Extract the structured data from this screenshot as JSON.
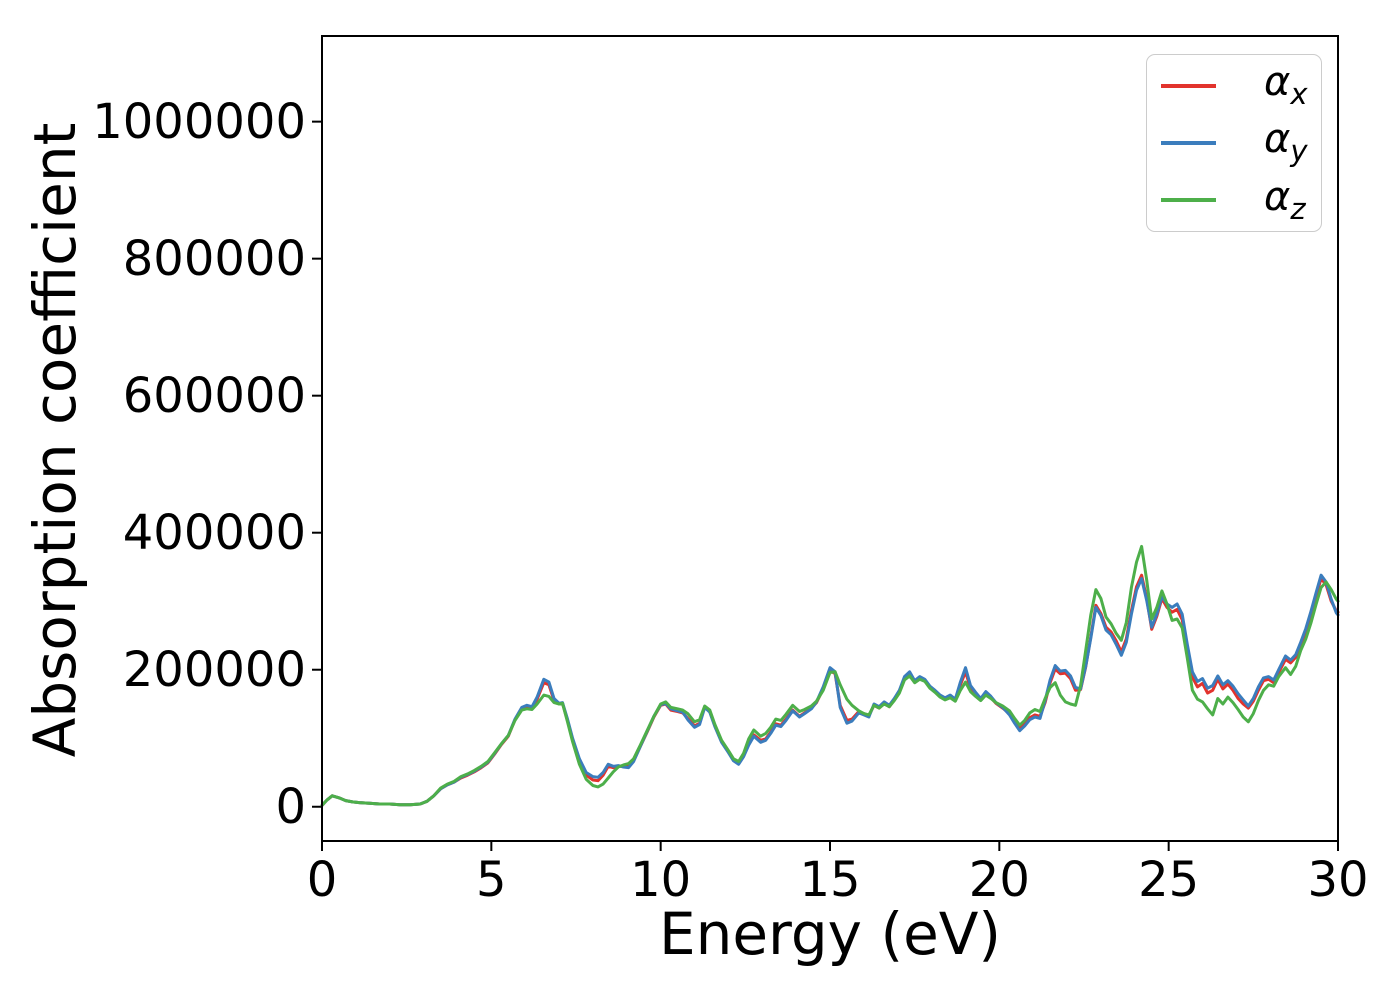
{
  "chart_data": {
    "type": "line",
    "title": "",
    "xlabel": "Energy (eV)",
    "ylabel": "Absorption coefficient",
    "xlim": [
      0,
      30
    ],
    "ylim": [
      -50000,
      1125000
    ],
    "x_ticks": [
      0,
      5,
      10,
      15,
      20,
      25,
      30
    ],
    "y_ticks": [
      0,
      200000,
      400000,
      600000,
      800000,
      1000000
    ],
    "grid": false,
    "legend_position": "upper right",
    "frame_color": "#000000",
    "x": [
      0,
      0.15,
      0.3,
      0.5,
      0.7,
      0.9,
      1.1,
      1.4,
      1.7,
      2.0,
      2.3,
      2.6,
      2.9,
      3.1,
      3.3,
      3.5,
      3.7,
      3.9,
      4.1,
      4.3,
      4.5,
      4.7,
      4.9,
      5.1,
      5.3,
      5.5,
      5.7,
      5.9,
      6.05,
      6.2,
      6.35,
      6.55,
      6.7,
      6.85,
      7.0,
      7.1,
      7.25,
      7.4,
      7.6,
      7.8,
      8.0,
      8.15,
      8.3,
      8.45,
      8.6,
      8.75,
      8.9,
      9.05,
      9.2,
      9.4,
      9.6,
      9.8,
      10.0,
      10.15,
      10.3,
      10.5,
      10.65,
      10.8,
      11.0,
      11.15,
      11.3,
      11.45,
      11.6,
      11.8,
      12.0,
      12.15,
      12.3,
      12.45,
      12.6,
      12.75,
      12.95,
      13.1,
      13.25,
      13.4,
      13.55,
      13.7,
      13.9,
      14.1,
      14.25,
      14.45,
      14.6,
      14.8,
      15.0,
      15.15,
      15.3,
      15.5,
      15.65,
      15.85,
      16.0,
      16.15,
      16.3,
      16.45,
      16.6,
      16.75,
      16.9,
      17.05,
      17.2,
      17.35,
      17.5,
      17.65,
      17.8,
      17.95,
      18.1,
      18.25,
      18.4,
      18.55,
      18.7,
      18.85,
      19.0,
      19.15,
      19.3,
      19.45,
      19.6,
      19.75,
      19.9,
      20.1,
      20.3,
      20.45,
      20.6,
      20.75,
      20.9,
      21.05,
      21.2,
      21.35,
      21.5,
      21.65,
      21.8,
      21.95,
      22.1,
      22.25,
      22.4,
      22.55,
      22.7,
      22.85,
      23.0,
      23.15,
      23.3,
      23.45,
      23.6,
      23.75,
      23.9,
      24.05,
      24.2,
      24.35,
      24.5,
      24.65,
      24.8,
      24.95,
      25.1,
      25.25,
      25.4,
      25.55,
      25.7,
      25.85,
      26.0,
      26.15,
      26.3,
      26.45,
      26.6,
      26.75,
      26.9,
      27.05,
      27.2,
      27.35,
      27.5,
      27.65,
      27.8,
      27.95,
      28.1,
      28.25,
      28.45,
      28.6,
      28.75,
      28.9,
      29.05,
      29.2,
      29.35,
      29.5,
      29.65,
      29.8,
      29.95,
      30.0
    ],
    "series": [
      {
        "name_base": "α",
        "name_sub": "x",
        "color": "#e2332d",
        "values": [
          2000,
          10000,
          16000,
          13000,
          9000,
          7000,
          6000,
          5000,
          4000,
          4000,
          3000,
          3000,
          4000,
          8000,
          16000,
          26000,
          32000,
          36000,
          42000,
          46000,
          51000,
          57000,
          64000,
          77000,
          91000,
          103000,
          127000,
          144000,
          147000,
          145000,
          157000,
          181000,
          178000,
          155000,
          150000,
          151000,
          126000,
          98000,
          67000,
          46000,
          39000,
          38000,
          46000,
          59000,
          57000,
          59000,
          59000,
          59000,
          67000,
          88000,
          109000,
          131000,
          148000,
          150000,
          141000,
          139000,
          137000,
          129000,
          118000,
          122000,
          146000,
          139000,
          118000,
          95000,
          80000,
          68000,
          63000,
          74000,
          92000,
          105000,
          97000,
          99000,
          109000,
          121000,
          119000,
          128000,
          141000,
          132000,
          137000,
          144000,
          152000,
          172000,
          199000,
          194000,
          148000,
          126000,
          128000,
          139000,
          136000,
          133000,
          148000,
          144000,
          151000,
          146000,
          156000,
          168000,
          188000,
          195000,
          182000,
          188000,
          184000,
          174000,
          169000,
          162000,
          158000,
          162000,
          156000,
          178000,
          197000,
          173000,
          164000,
          156000,
          166000,
          159000,
          151000,
          144000,
          136000,
          124000,
          114000,
          121000,
          130000,
          134000,
          132000,
          152000,
          181000,
          201000,
          194000,
          195000,
          187000,
          170000,
          171000,
          204000,
          248000,
          294000,
          282000,
          262000,
          255000,
          242000,
          226000,
          245000,
          286000,
          321000,
          338000,
          304000,
          259000,
          278000,
          304000,
          291000,
          284000,
          288000,
          273000,
          230000,
          189000,
          175000,
          180000,
          166000,
          170000,
          186000,
          172000,
          179000,
          170000,
          158000,
          150000,
          144000,
          154000,
          170000,
          184000,
          186000,
          181000,
          196000,
          215000,
          210000,
          218000,
          236000,
          256000,
          281000,
          308000,
          333000,
          324000,
          300000,
          286000,
          284000
        ]
      },
      {
        "name_base": "α",
        "name_sub": "y",
        "color": "#3b7dbd",
        "values": [
          2000,
          10000,
          16000,
          13000,
          9000,
          7000,
          6000,
          5000,
          4000,
          4000,
          3000,
          3000,
          4000,
          8000,
          16000,
          26000,
          32000,
          36000,
          43000,
          47000,
          52000,
          58000,
          65000,
          78000,
          92000,
          104000,
          128000,
          145000,
          148000,
          146000,
          160000,
          186000,
          182000,
          158000,
          151000,
          152000,
          128000,
          100000,
          70000,
          50000,
          44000,
          43000,
          50000,
          62000,
          59000,
          60000,
          58000,
          57000,
          66000,
          88000,
          110000,
          132000,
          149000,
          151000,
          143000,
          140000,
          138000,
          127000,
          116000,
          120000,
          145000,
          138000,
          117000,
          94000,
          79000,
          67000,
          62000,
          73000,
          90000,
          103000,
          94000,
          97000,
          107000,
          119000,
          117000,
          126000,
          140000,
          131000,
          136000,
          143000,
          153000,
          175000,
          203000,
          197000,
          145000,
          122000,
          125000,
          137000,
          134000,
          131000,
          150000,
          146000,
          153000,
          148000,
          158000,
          170000,
          190000,
          197000,
          184000,
          190000,
          186000,
          176000,
          170000,
          163000,
          159000,
          163000,
          157000,
          182000,
          203000,
          177000,
          167000,
          158000,
          168000,
          161000,
          152000,
          145000,
          134000,
          122000,
          111000,
          118000,
          127000,
          131000,
          129000,
          155000,
          185000,
          206000,
          198000,
          199000,
          191000,
          174000,
          172000,
          205000,
          246000,
          291000,
          279000,
          258000,
          251000,
          237000,
          221000,
          240000,
          281000,
          316000,
          333000,
          301000,
          262000,
          281000,
          307000,
          296000,
          291000,
          296000,
          281000,
          237000,
          197000,
          183000,
          187000,
          173000,
          177000,
          191000,
          178000,
          184000,
          176000,
          165000,
          156000,
          147000,
          158000,
          175000,
          188000,
          190000,
          185000,
          200000,
          220000,
          214000,
          222000,
          240000,
          260000,
          285000,
          312000,
          338000,
          328000,
          303000,
          283000,
          280000
        ]
      },
      {
        "name_base": "α",
        "name_sub": "z",
        "color": "#4daf4a",
        "values": [
          2000,
          10000,
          16000,
          13000,
          9000,
          7000,
          6000,
          5000,
          4000,
          4000,
          3000,
          3000,
          4000,
          8000,
          16000,
          27000,
          33000,
          37000,
          44000,
          48000,
          53000,
          59000,
          66000,
          79000,
          92000,
          104000,
          126000,
          141000,
          143000,
          142000,
          150000,
          163000,
          161000,
          152000,
          150000,
          151000,
          124000,
          95000,
          62000,
          40000,
          31000,
          29000,
          33000,
          42000,
          51000,
          58000,
          61000,
          63000,
          70000,
          90000,
          111000,
          132000,
          150000,
          153000,
          145000,
          143000,
          141000,
          136000,
          124000,
          127000,
          147000,
          141000,
          120000,
          97000,
          82000,
          70000,
          66000,
          78000,
          99000,
          112000,
          103000,
          107000,
          116000,
          128000,
          126000,
          135000,
          148000,
          139000,
          142000,
          147000,
          154000,
          170000,
          196000,
          197000,
          178000,
          157000,
          148000,
          140000,
          136000,
          134000,
          148000,
          144000,
          150000,
          146000,
          155000,
          166000,
          185000,
          191000,
          181000,
          186000,
          183000,
          173000,
          167000,
          160000,
          156000,
          159000,
          154000,
          170000,
          182000,
          168000,
          161000,
          155000,
          163000,
          158000,
          152000,
          147000,
          140000,
          129000,
          119000,
          126000,
          137000,
          142000,
          139000,
          158000,
          174000,
          181000,
          163000,
          153000,
          150000,
          148000,
          177000,
          228000,
          280000,
          317000,
          304000,
          277000,
          267000,
          253000,
          243000,
          269000,
          320000,
          357000,
          380000,
          331000,
          274000,
          291000,
          315000,
          296000,
          272000,
          274000,
          261000,
          217000,
          170000,
          157000,
          153000,
          143000,
          134000,
          158000,
          150000,
          160000,
          152000,
          142000,
          131000,
          124000,
          136000,
          155000,
          170000,
          178000,
          176000,
          190000,
          203000,
          193000,
          205000,
          228000,
          245000,
          268000,
          295000,
          320000,
          328000,
          317000,
          303000,
          300000
        ]
      }
    ]
  }
}
